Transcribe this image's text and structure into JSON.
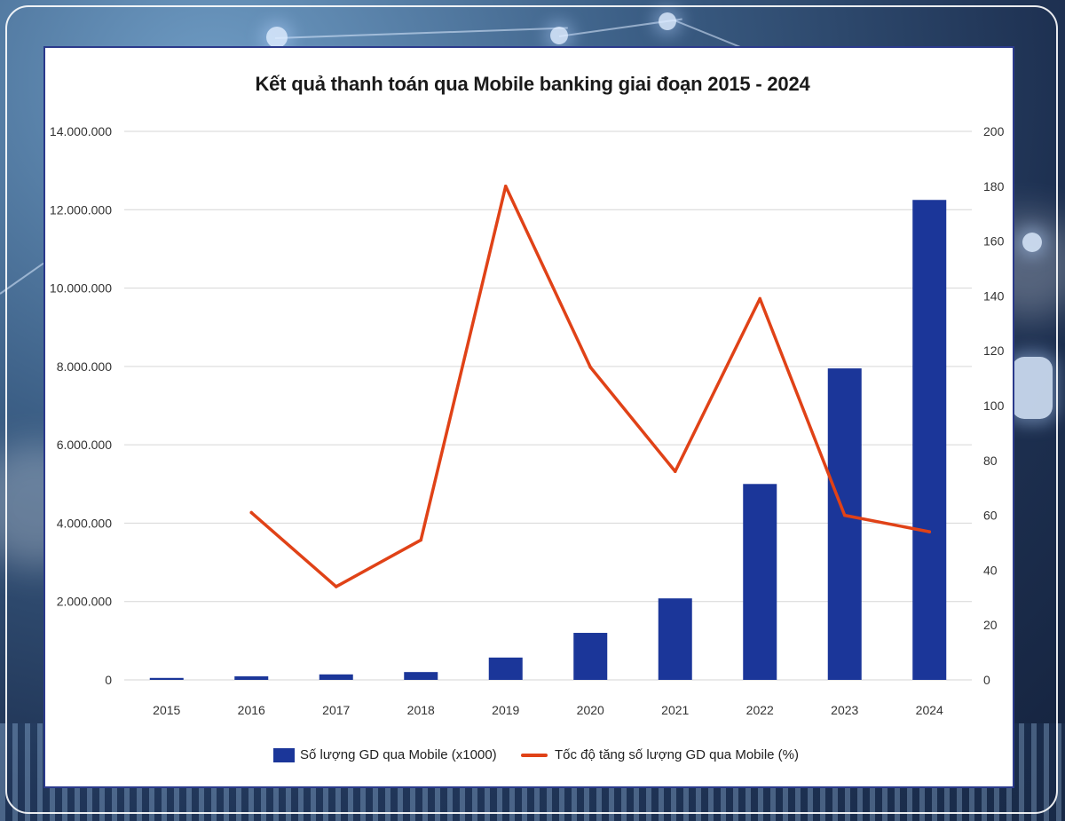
{
  "chart_data": {
    "type": "bar",
    "title": "Kết quả thanh toán qua Mobile banking giai đoạn 2015 - 2024",
    "categories": [
      "2015",
      "2016",
      "2017",
      "2018",
      "2019",
      "2020",
      "2021",
      "2022",
      "2023",
      "2024"
    ],
    "series": [
      {
        "name": "Số lượng GD qua Mobile (x1000)",
        "type": "bar",
        "axis": "left",
        "color": "#1b3699",
        "values": [
          50000,
          90000,
          140000,
          200000,
          570000,
          1200000,
          2080000,
          5000000,
          7950000,
          12250000
        ]
      },
      {
        "name": "Tốc độ tăng số lượng GD qua Mobile (%)",
        "type": "line",
        "axis": "right",
        "color": "#e04217",
        "values": [
          null,
          61,
          34,
          51,
          180,
          114,
          76,
          139,
          60,
          54
        ]
      }
    ],
    "y_left": {
      "ylim": [
        0,
        14000000
      ],
      "ticks": [
        0,
        2000000,
        4000000,
        6000000,
        8000000,
        10000000,
        12000000,
        14000000
      ],
      "tick_labels": [
        "0",
        "2.000.000",
        "4.000.000",
        "6.000.000",
        "8.000.000",
        "10.000.000",
        "12.000.000",
        "14.000.000"
      ]
    },
    "y_right": {
      "ylim": [
        0,
        200
      ],
      "ticks": [
        0,
        20,
        40,
        60,
        80,
        100,
        120,
        140,
        160,
        180,
        200
      ],
      "tick_labels": [
        "0",
        "20",
        "40",
        "60",
        "80",
        "100",
        "120",
        "140",
        "160",
        "180",
        "200"
      ]
    },
    "grid": true,
    "legend_position": "bottom-center"
  }
}
